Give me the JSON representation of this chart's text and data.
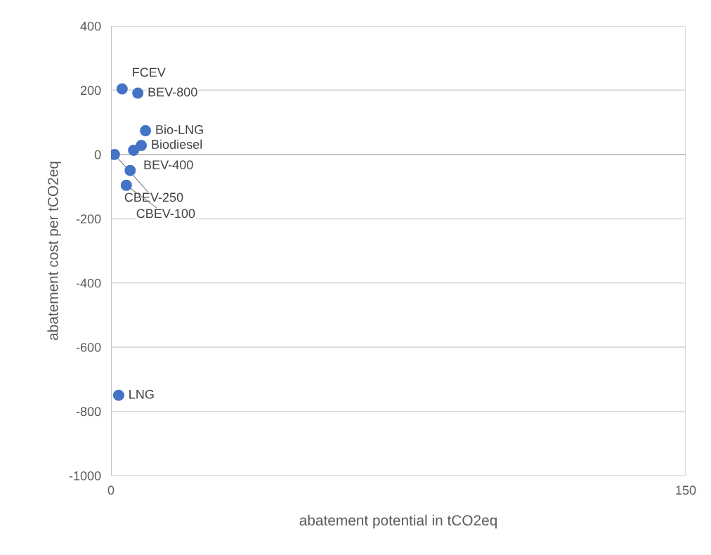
{
  "chart_data": {
    "type": "scatter",
    "xlabel": "abatement potential in tCO2eq",
    "ylabel": "abatement cost per tCO2eq",
    "x": [
      2.9,
      7.0,
      9.0,
      7.9,
      5.9,
      0.9,
      5.0,
      4.0,
      2.0
    ],
    "values": [
      204,
      191,
      74,
      28,
      13,
      0,
      -50,
      -96,
      -750
    ],
    "color": "#4472c4",
    "marker": "circle",
    "xlim": [
      0,
      150
    ],
    "xticks": [
      0,
      150
    ],
    "ylim": [
      -1000,
      400
    ],
    "yticks": [
      -1000,
      -800,
      -600,
      -400,
      -200,
      0,
      200,
      400
    ],
    "grid": true,
    "annotations": [
      {
        "text": "FCEV",
        "x": 2.9,
        "y": 204
      },
      {
        "text": "BEV-800",
        "x": 7.0,
        "y": 191
      },
      {
        "text": "Bio-LNG",
        "x": 9.0,
        "y": 74
      },
      {
        "text": "Biodiesel",
        "x": 7.9,
        "y": 28
      },
      {
        "text": "BEV-400",
        "x": 5.9,
        "y": 13
      },
      {
        "text": "CBEV-250",
        "x": 0.9,
        "y": 0
      },
      {
        "text": "CBEV-100",
        "x": 4.0,
        "y": -96
      },
      {
        "text": "LNG",
        "x": 2.0,
        "y": -750
      }
    ]
  }
}
